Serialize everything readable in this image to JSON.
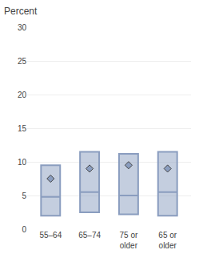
{
  "chart_data": {
    "type": "box",
    "title": "Percent",
    "categories": [
      "55–64",
      "65–74",
      "75 or\nolder",
      "65 or\nolder"
    ],
    "boxes": [
      {
        "whislo": 2.0,
        "q1": 2.0,
        "med": 4.8,
        "q3": 9.5,
        "whishi": 9.5,
        "mean": 7.5
      },
      {
        "whislo": 2.5,
        "q1": 2.5,
        "med": 5.5,
        "q3": 11.5,
        "whishi": 11.5,
        "mean": 9.0
      },
      {
        "whislo": 2.2,
        "q1": 2.2,
        "med": 5.0,
        "q3": 11.2,
        "whishi": 11.2,
        "mean": 9.5
      },
      {
        "whislo": 2.0,
        "q1": 2.0,
        "med": 5.5,
        "q3": 11.5,
        "whishi": 11.5,
        "mean": 9.0
      }
    ],
    "color": "#8a9dbf",
    "ylim": [
      0,
      30
    ],
    "yticks": [
      0,
      5,
      10,
      15,
      20,
      25,
      30
    ],
    "grid": true
  }
}
